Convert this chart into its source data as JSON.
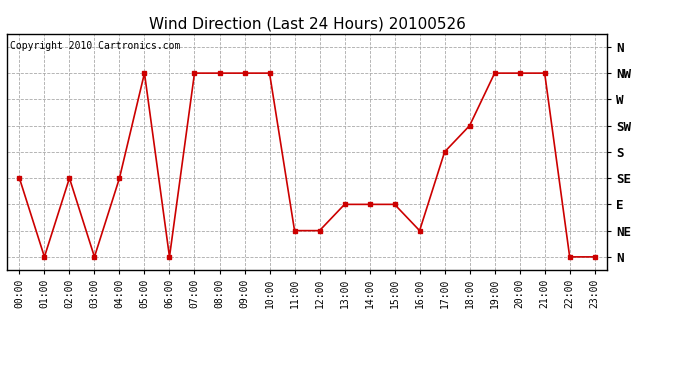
{
  "title": "Wind Direction (Last 24 Hours) 20100526",
  "copyright": "Copyright 2010 Cartronics.com",
  "hours": [
    0,
    1,
    2,
    3,
    4,
    5,
    6,
    7,
    8,
    9,
    10,
    11,
    12,
    13,
    14,
    15,
    16,
    17,
    18,
    19,
    20,
    21,
    22,
    23
  ],
  "hour_labels": [
    "00:00",
    "01:00",
    "02:00",
    "03:00",
    "04:00",
    "05:00",
    "06:00",
    "07:00",
    "08:00",
    "09:00",
    "10:00",
    "11:00",
    "12:00",
    "13:00",
    "14:00",
    "15:00",
    "16:00",
    "17:00",
    "18:00",
    "19:00",
    "20:00",
    "21:00",
    "22:00",
    "23:00"
  ],
  "wind_values": [
    3,
    0,
    3,
    0,
    3,
    7,
    0,
    7,
    7,
    7,
    7,
    1,
    1,
    2,
    2,
    2,
    1,
    4,
    5,
    7,
    7,
    7,
    0,
    0
  ],
  "ytick_values": [
    0,
    1,
    2,
    3,
    4,
    5,
    6,
    7,
    8
  ],
  "ytick_labels": [
    "N",
    "NE",
    "E",
    "SE",
    "S",
    "SW",
    "W",
    "NW",
    "N"
  ],
  "line_color": "#cc0000",
  "marker": "s",
  "marker_size": 2.5,
  "bg_color": "#ffffff",
  "grid_color": "#aaaaaa",
  "title_fontsize": 11,
  "copyright_fontsize": 7,
  "xtick_fontsize": 7,
  "ytick_fontsize": 9
}
